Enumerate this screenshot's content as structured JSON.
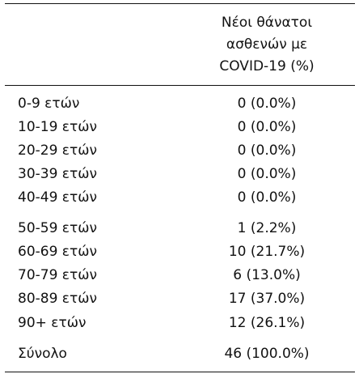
{
  "table": {
    "header": {
      "line1": "Νέοι θάνατοι",
      "line2": "ασθενών με",
      "line3": "COVID-19 (%)"
    },
    "rows": [
      {
        "label": "0-9 ετών",
        "value": "0 (0.0%)"
      },
      {
        "label": "10-19 ετών",
        "value": "0 (0.0%)"
      },
      {
        "label": "20-29 ετών",
        "value": "0 (0.0%)"
      },
      {
        "label": "30-39 ετών",
        "value": "0 (0.0%)"
      },
      {
        "label": "40-49 ετών",
        "value": "0 (0.0%)"
      },
      {
        "label": "50-59 ετών",
        "value": "1 (2.2%)"
      },
      {
        "label": "60-69 ετών",
        "value": "10 (21.7%)"
      },
      {
        "label": "70-79 ετών",
        "value": "6 (13.0%)"
      },
      {
        "label": "80-89 ετών",
        "value": "17 (37.0%)"
      },
      {
        "label": "90+ ετών",
        "value": "12 (26.1%)"
      },
      {
        "label": "Σύνολο",
        "value": "46 (100.0%)"
      }
    ]
  }
}
